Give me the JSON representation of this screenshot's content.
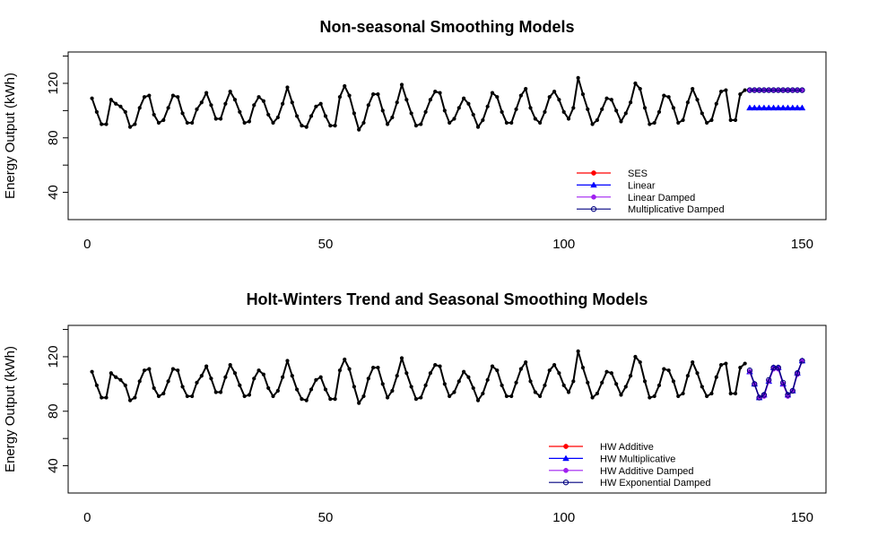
{
  "chart_data": [
    {
      "type": "line",
      "title": "Non-seasonal Smoothing Models",
      "xlabel": "",
      "ylabel": "Energy Output (kWh)",
      "xlim": [
        -4,
        155
      ],
      "ylim": [
        20,
        143
      ],
      "xticks": [
        0,
        50,
        100,
        150
      ],
      "yticks": [
        40,
        80,
        120
      ],
      "x_tick_labels": [
        "0",
        "50",
        "100",
        "150"
      ],
      "y_tick_labels": [
        "40",
        "80",
        "120"
      ],
      "legend_position": "bottom-right",
      "legend": [
        "SES",
        "Linear",
        "Linear Damped",
        "Multiplicative Damped"
      ],
      "series": [
        {
          "name": "",
          "color": "#000000",
          "x_start": 1,
          "values": [
            109,
            99,
            90,
            90,
            108,
            105,
            103,
            99,
            88,
            90,
            102,
            110,
            111,
            97,
            91,
            93,
            102,
            111,
            110,
            98,
            91,
            91,
            101,
            106,
            113,
            104,
            94,
            94,
            105,
            114,
            108,
            99,
            91,
            92,
            104,
            110,
            107,
            97,
            91,
            95,
            105,
            117,
            106,
            96,
            89,
            88,
            96,
            103,
            105,
            96,
            89,
            89,
            110,
            118,
            111,
            98,
            86,
            91,
            104,
            112,
            112,
            100,
            90,
            95,
            106,
            119,
            108,
            98,
            89,
            90,
            99,
            108,
            114,
            113,
            100,
            91,
            94,
            102,
            109,
            105,
            97,
            88,
            93,
            103,
            113,
            110,
            99,
            91,
            91,
            101,
            111,
            116,
            102,
            94,
            91,
            99,
            110,
            114,
            108,
            99,
            94,
            102,
            124,
            112,
            101,
            90,
            93,
            101,
            109,
            108,
            100,
            92,
            98,
            106,
            120,
            116,
            102,
            90,
            91,
            99,
            111,
            110,
            102,
            91,
            93,
            106,
            116,
            108,
            98,
            91,
            93,
            105,
            114,
            115,
            93,
            93,
            112,
            115
          ]
        },
        {
          "name": "SES",
          "color": "#ff0000",
          "marker": "filled-circle",
          "x": [
            139,
            140,
            141,
            142,
            143,
            144,
            145,
            146,
            147,
            148,
            149,
            150
          ],
          "values": [
            115,
            115,
            115,
            115,
            115,
            115,
            115,
            115,
            115,
            115,
            115,
            115
          ]
        },
        {
          "name": "Linear",
          "color": "#0000ff",
          "marker": "filled-triangle",
          "x": [
            139,
            140,
            141,
            142,
            143,
            144,
            145,
            146,
            147,
            148,
            149,
            150
          ],
          "values": [
            102,
            102,
            102,
            102,
            102,
            102,
            102,
            102,
            102,
            102,
            102,
            102
          ]
        },
        {
          "name": "Linear Damped",
          "color": "#a020f0",
          "marker": "filled-circle",
          "x": [
            139,
            140,
            141,
            142,
            143,
            144,
            145,
            146,
            147,
            148,
            149,
            150
          ],
          "values": [
            115,
            115,
            115,
            115,
            115,
            115,
            115,
            115,
            115,
            115,
            115,
            115
          ]
        },
        {
          "name": "Multiplicative Damped",
          "color": "#000080",
          "marker": "open-circle",
          "x": [
            139,
            140,
            141,
            142,
            143,
            144,
            145,
            146,
            147,
            148,
            149,
            150
          ],
          "values": [
            115,
            115,
            115,
            115,
            115,
            115,
            115,
            115,
            115,
            115,
            115,
            115
          ]
        }
      ]
    },
    {
      "type": "line",
      "title": "Holt-Winters Trend and Seasonal Smoothing Models",
      "xlabel": "",
      "ylabel": "Energy Output (kWh)",
      "xlim": [
        -4,
        155
      ],
      "ylim": [
        20,
        143
      ],
      "xticks": [
        0,
        50,
        100,
        150
      ],
      "yticks": [
        40,
        80,
        120
      ],
      "x_tick_labels": [
        "0",
        "50",
        "100",
        "150"
      ],
      "y_tick_labels": [
        "40",
        "80",
        "120"
      ],
      "legend_position": "bottom-right",
      "legend": [
        "HW Additive",
        "HW Multiplicative",
        "HW Additive Damped",
        "HW Exponential Damped"
      ],
      "series": [
        {
          "name": "",
          "color": "#000000",
          "x_start": 1,
          "values": [
            109,
            99,
            90,
            90,
            108,
            105,
            103,
            99,
            88,
            90,
            102,
            110,
            111,
            97,
            91,
            93,
            102,
            111,
            110,
            98,
            91,
            91,
            101,
            106,
            113,
            104,
            94,
            94,
            105,
            114,
            108,
            99,
            91,
            92,
            104,
            110,
            107,
            97,
            91,
            95,
            105,
            117,
            106,
            96,
            89,
            88,
            96,
            103,
            105,
            96,
            89,
            89,
            110,
            118,
            111,
            98,
            86,
            91,
            104,
            112,
            112,
            100,
            90,
            95,
            106,
            119,
            108,
            98,
            89,
            90,
            99,
            108,
            114,
            113,
            100,
            91,
            94,
            102,
            109,
            105,
            97,
            88,
            93,
            103,
            113,
            110,
            99,
            91,
            91,
            101,
            111,
            116,
            102,
            94,
            91,
            99,
            110,
            114,
            108,
            99,
            94,
            102,
            124,
            112,
            101,
            90,
            93,
            101,
            109,
            108,
            100,
            92,
            98,
            106,
            120,
            116,
            102,
            90,
            91,
            99,
            111,
            110,
            102,
            91,
            93,
            106,
            116,
            108,
            98,
            91,
            93,
            105,
            114,
            115,
            93,
            93,
            112,
            115
          ]
        },
        {
          "name": "HW Additive",
          "color": "#ff0000",
          "marker": "filled-circle",
          "x": [
            139,
            140,
            141,
            142,
            143,
            144,
            145,
            146,
            147,
            148,
            149,
            150
          ],
          "values": [
            109,
            100,
            90,
            92,
            102,
            112,
            112,
            100,
            92,
            95,
            108,
            117
          ]
        },
        {
          "name": "HW Multiplicative",
          "color": "#0000ff",
          "marker": "filled-triangle",
          "x": [
            139,
            140,
            141,
            142,
            143,
            144,
            145,
            146,
            147,
            148,
            149,
            150
          ],
          "values": [
            109,
            100,
            90,
            92,
            102,
            112,
            112,
            100,
            92,
            95,
            108,
            117
          ]
        },
        {
          "name": "HW Additive Damped",
          "color": "#a020f0",
          "marker": "filled-circle",
          "x": [
            139,
            140,
            141,
            142,
            143,
            144,
            145,
            146,
            147,
            148,
            149,
            150
          ],
          "values": [
            109,
            100,
            90,
            91,
            102,
            111,
            111,
            100,
            91,
            95,
            107,
            117
          ]
        },
        {
          "name": "HW Exponential Damped",
          "color": "#000080",
          "marker": "open-circle",
          "x": [
            139,
            140,
            141,
            142,
            143,
            144,
            145,
            146,
            147,
            148,
            149,
            150
          ],
          "values": [
            110,
            100,
            90,
            92,
            103,
            112,
            112,
            101,
            92,
            95,
            108,
            117
          ]
        }
      ]
    }
  ]
}
